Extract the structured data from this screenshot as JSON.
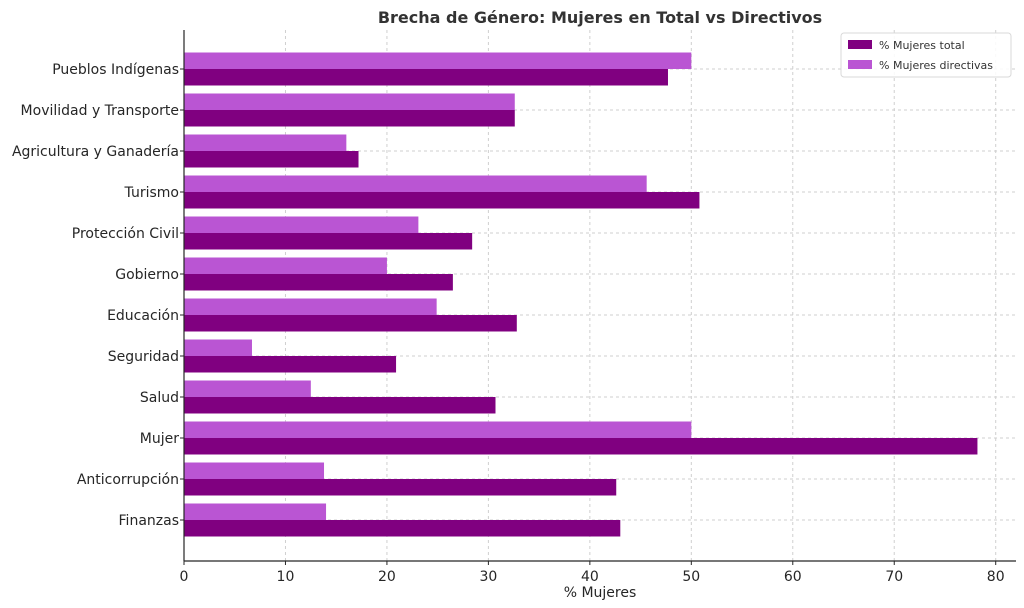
{
  "chart_data": {
    "type": "bar",
    "orientation": "horizontal",
    "title": "Brecha de Género: Mujeres en Total vs Directivos",
    "xlabel": "% Mujeres",
    "ylabel": "",
    "xlim": [
      0,
      82
    ],
    "xticks": [
      0,
      10,
      20,
      30,
      40,
      50,
      60,
      70,
      80
    ],
    "grid": true,
    "legend_position": "top-right",
    "categories": [
      "Finanzas",
      "Anticorrupción",
      "Mujer",
      "Salud",
      "Seguridad",
      "Educación",
      "Gobierno",
      "Protección Civil",
      "Turismo",
      "Agricultura y Ganadería",
      "Movilidad y Transporte",
      "Pueblos Indígenas"
    ],
    "series": [
      {
        "name": "% Mujeres total",
        "color": "#800080",
        "values": [
          43.0,
          42.6,
          78.2,
          30.7,
          20.9,
          32.8,
          26.5,
          28.4,
          50.8,
          17.2,
          32.6,
          47.7
        ]
      },
      {
        "name": "% Mujeres directivas",
        "color": "#ba55d3",
        "values": [
          14.0,
          13.8,
          50.0,
          12.5,
          6.7,
          24.9,
          20.0,
          23.1,
          45.6,
          16.0,
          32.6,
          50.0
        ]
      }
    ]
  }
}
